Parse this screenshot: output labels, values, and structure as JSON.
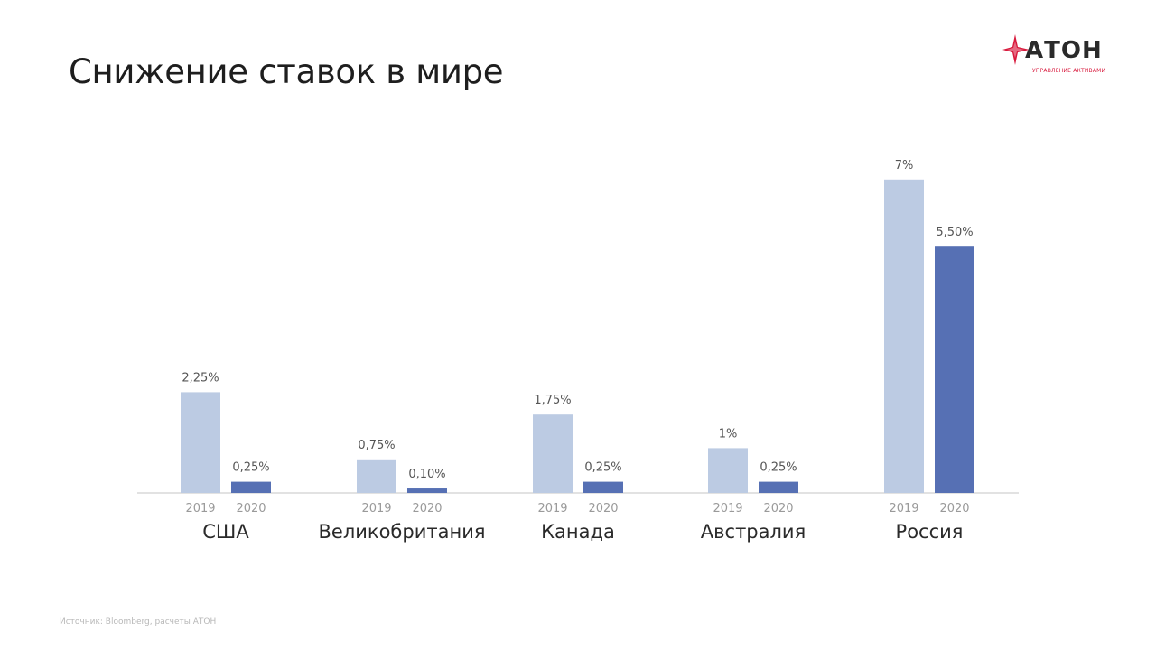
{
  "page": {
    "title": "Снижение ставок в мире",
    "source": "Источник: Bloomberg, расчеты АТОН"
  },
  "logo": {
    "word": "АТОН",
    "tagline": "Управление активами",
    "brand_color": "#d8193c"
  },
  "chart_data": {
    "type": "bar",
    "categories": [
      "США",
      "Великобритания",
      "Канада",
      "Австралия",
      "Россия"
    ],
    "series": [
      {
        "period": "2019",
        "color": "#bccbe3",
        "values": [
          2.25,
          0.75,
          1.75,
          1,
          7
        ],
        "labels": [
          "2,25%",
          "0,75%",
          "1,75%",
          "1%",
          "7%"
        ]
      },
      {
        "period": "2020",
        "color": "#5670b4",
        "values": [
          0.25,
          0.1,
          0.25,
          0.25,
          5.5
        ],
        "labels": [
          "0,25%",
          "0,10%",
          "0,25%",
          "0,25%",
          "5,50%"
        ]
      }
    ],
    "unit": "%",
    "grid": false,
    "legend": "none"
  }
}
